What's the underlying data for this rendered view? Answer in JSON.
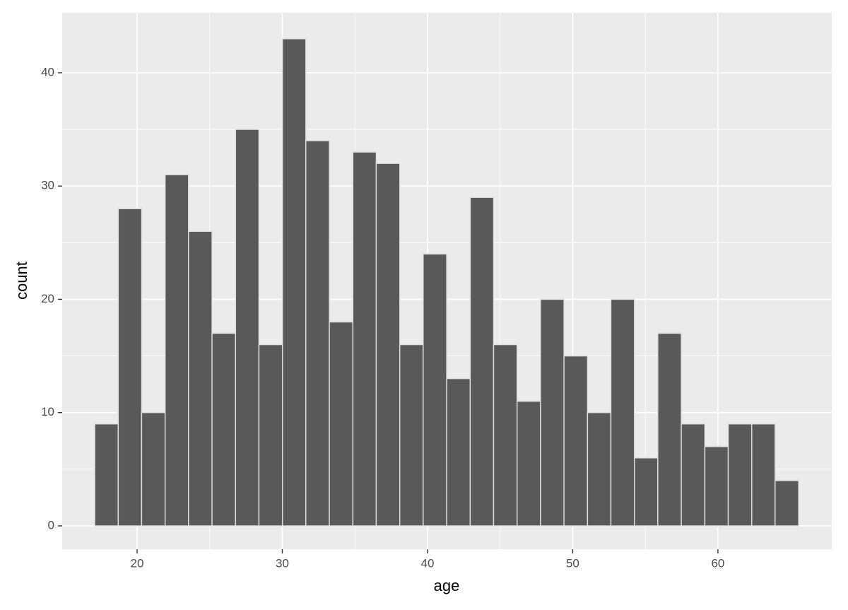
{
  "chart_data": {
    "type": "histogram",
    "x_label": "age",
    "y_label": "count",
    "bins": [
      17.08,
      18.7,
      20.31,
      21.93,
      23.54,
      25.16,
      26.78,
      28.39,
      30.01,
      31.62,
      33.24,
      34.86,
      36.47,
      38.09,
      39.7,
      41.32,
      42.94,
      44.55,
      46.17,
      47.78,
      49.4,
      51.02,
      52.63,
      54.25,
      55.86,
      57.48,
      59.1,
      60.71,
      62.33,
      63.94,
      65.56
    ],
    "values": [
      9,
      28,
      10,
      31,
      26,
      17,
      35,
      16,
      43,
      34,
      18,
      33,
      32,
      16,
      24,
      13,
      29,
      16,
      11,
      20,
      15,
      10,
      20,
      6,
      17,
      9,
      7,
      9,
      9,
      4
    ],
    "color": "#595959",
    "xlim": [
      14.84,
      67.84
    ],
    "xticks": [
      20,
      30,
      40,
      50,
      60
    ],
    "ylim": [
      -2.06,
      45.3
    ],
    "yticks": [
      0,
      10,
      20,
      30,
      40
    ],
    "grid": true
  }
}
